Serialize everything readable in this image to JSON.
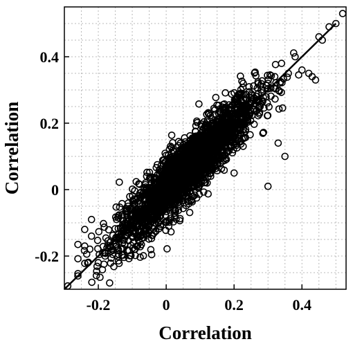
{
  "chart_data": {
    "type": "scatter",
    "title": "",
    "xlabel": "Correlation",
    "ylabel": "Correlation",
    "xlim": [
      -0.3,
      0.53
    ],
    "ylim": [
      -0.3,
      0.55
    ],
    "x_ticks": [
      -0.2,
      0,
      0.2,
      0.4
    ],
    "x_tick_labels": [
      "-0.2",
      "0",
      "0.2",
      "0.4"
    ],
    "y_ticks": [
      -0.2,
      0,
      0.2,
      0.4
    ],
    "y_tick_labels": [
      "-0.2",
      "0",
      "0.2",
      "0.4"
    ],
    "minor_grid_step": 0.05,
    "grid": true,
    "grid_style": "dotted",
    "marker": "open circle",
    "color": "#000000",
    "dense_cloud": {
      "approx_points": 2600,
      "x_range": [
        -0.26,
        0.42
      ],
      "mean_x": 0.06,
      "sd_x": 0.1,
      "relation": "y ≈ x",
      "residual_sd": 0.045
    },
    "series": [
      {
        "x": [
          -0.29,
          -0.26,
          -0.24,
          -0.22,
          -0.2,
          -0.18,
          -0.24,
          -0.22,
          0.28,
          0.3,
          0.32,
          0.34,
          0.36,
          0.38,
          0.4,
          0.42,
          0.43,
          0.44,
          0.45,
          0.46,
          0.48,
          0.5,
          0.52,
          0.33,
          0.35,
          0.3,
          0.12,
          0.2
        ],
        "y": [
          -0.29,
          -0.26,
          -0.17,
          -0.14,
          -0.22,
          -0.2,
          -0.12,
          -0.09,
          0.3,
          0.32,
          0.34,
          0.38,
          0.35,
          0.4,
          0.36,
          0.35,
          0.34,
          0.33,
          0.46,
          0.45,
          0.49,
          0.5,
          0.53,
          0.14,
          0.1,
          0.01,
          0.07,
          0.05
        ]
      }
    ],
    "reference_line": {
      "slope": 1,
      "intercept": 0
    }
  }
}
